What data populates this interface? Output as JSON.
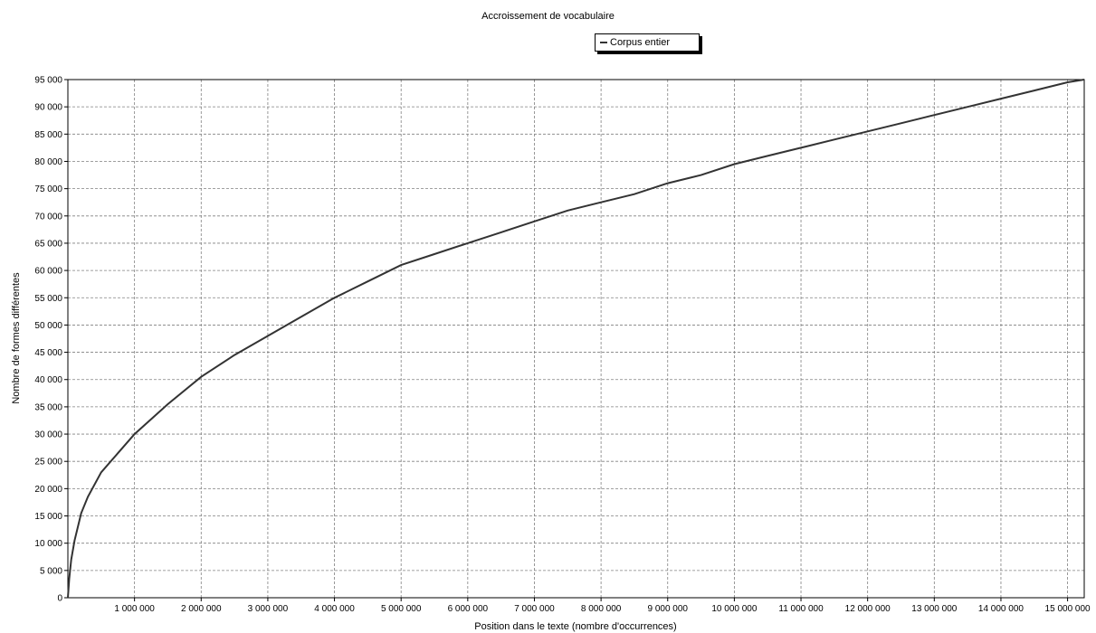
{
  "chart_data": {
    "type": "line",
    "title": "Accroissement de vocabulaire",
    "xlabel": "Position dans le texte (nombre d'occurrences)",
    "ylabel": "Nombre de formes différentes",
    "xlim": [
      0,
      15250000
    ],
    "ylim": [
      0,
      95000
    ],
    "x_ticks": [
      1000000,
      2000000,
      3000000,
      4000000,
      5000000,
      6000000,
      7000000,
      8000000,
      9000000,
      10000000,
      11000000,
      12000000,
      13000000,
      14000000,
      15000000
    ],
    "x_tick_labels": [
      "1 000 000",
      "2 000 000",
      "3 000 000",
      "4 000 000",
      "5 000 000",
      "6 000 000",
      "7 000 000",
      "8 000 000",
      "9 000 000",
      "10 000 000",
      "11 000 000",
      "12 000 000",
      "13 000 000",
      "14 000 000",
      "15 000 000"
    ],
    "y_ticks": [
      0,
      5000,
      10000,
      15000,
      20000,
      25000,
      30000,
      35000,
      40000,
      45000,
      50000,
      55000,
      60000,
      65000,
      70000,
      75000,
      80000,
      85000,
      90000,
      95000
    ],
    "y_tick_labels": [
      "0",
      "5 000",
      "10 000",
      "15 000",
      "20 000",
      "25 000",
      "30 000",
      "35 000",
      "40 000",
      "45 000",
      "50 000",
      "55 000",
      "60 000",
      "65 000",
      "70 000",
      "75 000",
      "80 000",
      "85 000",
      "90 000",
      "95 000"
    ],
    "grid": true,
    "legend_position": "top-center",
    "series": [
      {
        "name": "Corpus entier",
        "color": "#333333",
        "x": [
          0,
          20000,
          50000,
          100000,
          200000,
          300000,
          500000,
          750000,
          1000000,
          1500000,
          2000000,
          2500000,
          3000000,
          3500000,
          4000000,
          4500000,
          5000000,
          5500000,
          6000000,
          6500000,
          7000000,
          7500000,
          8000000,
          8500000,
          9000000,
          9500000,
          10000000,
          10500000,
          11000000,
          11500000,
          12000000,
          12500000,
          13000000,
          13500000,
          14000000,
          14500000,
          15000000,
          15250000
        ],
        "y": [
          0,
          3500,
          7000,
          10500,
          15500,
          18500,
          23000,
          26500,
          30000,
          35500,
          40500,
          44500,
          48000,
          51500,
          55000,
          58000,
          61000,
          63000,
          65000,
          67000,
          69000,
          71000,
          72500,
          74000,
          76000,
          77500,
          79500,
          81000,
          82500,
          84000,
          85500,
          87000,
          88500,
          90000,
          91500,
          93000,
          94500,
          95000
        ]
      }
    ]
  }
}
